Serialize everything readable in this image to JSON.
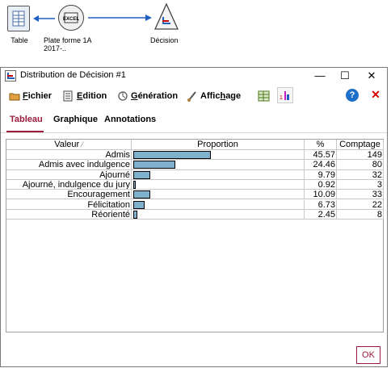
{
  "stream": {
    "nodes": [
      {
        "label": "Table"
      },
      {
        "label": "Plate forme 1A 2017-.."
      },
      {
        "label": "Décision"
      }
    ]
  },
  "window": {
    "title": "Distribution de Décision #1",
    "minimize": "—",
    "maximize": "☐",
    "close": "✕"
  },
  "menu": {
    "fichier_u": "F",
    "fichier_rest": "ichier",
    "edition_u": "E",
    "edition_rest": "dition",
    "generation_u": "G",
    "generation_rest": "énération",
    "affichage_pre": "Affic",
    "affichage_u": "h",
    "affichage_rest": "age"
  },
  "tabs": {
    "tableau": "Tableau",
    "graphique": "Graphique",
    "annotations": "Annotations"
  },
  "table": {
    "headers": {
      "valeur": "Valeur",
      "sort_icon": "⁄",
      "proportion": "Proportion",
      "pct": "%",
      "count": "Comptage"
    },
    "rows": [
      {
        "valeur": "Admis",
        "pct": "45.57",
        "count": "149",
        "proportion": 45.57
      },
      {
        "valeur": "Admis avec indulgence",
        "pct": "24.46",
        "count": "80",
        "proportion": 24.46
      },
      {
        "valeur": "Ajourné",
        "pct": "9.79",
        "count": "32",
        "proportion": 9.79
      },
      {
        "valeur": "Ajourné, indulgence du jury",
        "pct": "0.92",
        "count": "3",
        "proportion": 0.92
      },
      {
        "valeur": "Encouragement",
        "pct": "10.09",
        "count": "33",
        "proportion": 10.09
      },
      {
        "valeur": "Félicitation",
        "pct": "6.73",
        "count": "22",
        "proportion": 6.73
      },
      {
        "valeur": "Réorienté",
        "pct": "2.45",
        "count": "8",
        "proportion": 2.45
      }
    ]
  },
  "footer": {
    "ok": "OK"
  },
  "colors": {
    "accent": "#9c1c3c",
    "bar": "#7fb0cc",
    "arrow": "#1f5fbf",
    "help": "#1e6fc8",
    "close_red": "#d40000"
  }
}
